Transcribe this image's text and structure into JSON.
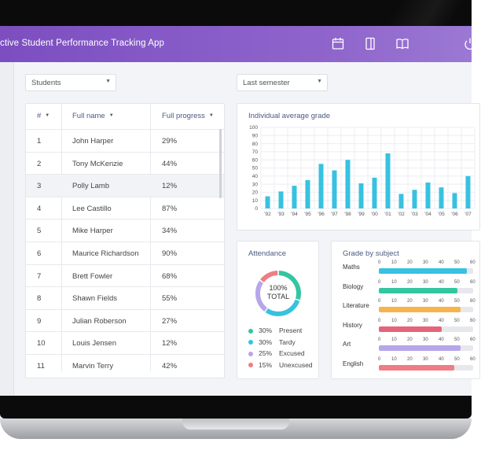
{
  "app": {
    "title": "ctive Student Performance Tracking App"
  },
  "header_icons": [
    "calendar-icon",
    "book-page-icon",
    "open-book-icon"
  ],
  "filters": {
    "students": "Students",
    "period": "Last semester"
  },
  "table": {
    "headers": {
      "num": "#",
      "name": "Full name",
      "progress": "Full progress"
    },
    "rows": [
      {
        "num": "1",
        "name": "John Harper",
        "progress": "29%"
      },
      {
        "num": "2",
        "name": "Tony McKenzie",
        "progress": "44%"
      },
      {
        "num": "3",
        "name": "Polly Lamb",
        "progress": "12%"
      },
      {
        "num": "4",
        "name": "Lee Castillo",
        "progress": "87%"
      },
      {
        "num": "5",
        "name": "Mike Harper",
        "progress": "34%"
      },
      {
        "num": "6",
        "name": "Maurice Richardson",
        "progress": "90%"
      },
      {
        "num": "7",
        "name": "Brett Fowler",
        "progress": "68%"
      },
      {
        "num": "8",
        "name": "Shawn Fields",
        "progress": "55%"
      },
      {
        "num": "9",
        "name": "Julian Roberson",
        "progress": "27%"
      },
      {
        "num": "10",
        "name": "Louis Jensen",
        "progress": "12%"
      },
      {
        "num": "11",
        "name": "Marvin Terry",
        "progress": "42%"
      }
    ],
    "selected_row": 2
  },
  "avg_grade": {
    "title": "Individual average grade",
    "y_ticks": [
      "100",
      "90",
      "80",
      "70",
      "60",
      "50",
      "40",
      "30",
      "20",
      "10",
      "0"
    ],
    "x_labels": [
      "'92",
      "'93",
      "'94",
      "'95",
      "'96",
      "'97",
      "'98",
      "'99",
      "'00",
      "'01",
      "'02",
      "'03",
      "'04",
      "'05",
      "'06",
      "'07"
    ],
    "values": [
      15,
      21,
      28,
      35,
      55,
      47,
      60,
      31,
      38,
      68,
      18,
      23,
      32,
      26,
      19,
      40
    ],
    "ylim": [
      0,
      100
    ],
    "color": "#38c1e0"
  },
  "attendance": {
    "title": "Attendance",
    "center_value": "100%",
    "center_label": "TOTAL",
    "items": [
      {
        "pct": "30%",
        "label": "Present",
        "value": 30,
        "color": "#33c6a0"
      },
      {
        "pct": "30%",
        "label": "Tardy",
        "value": 30,
        "color": "#38c1e0"
      },
      {
        "pct": "25%",
        "label": "Excused",
        "value": 25,
        "color": "#b7a6ea"
      },
      {
        "pct": "15%",
        "label": "Unexcused",
        "value": 15,
        "color": "#ef7d84"
      }
    ]
  },
  "grade_by_subject": {
    "title": "Grade by subject",
    "axis": [
      "0",
      "10",
      "20",
      "30",
      "40",
      "50",
      "60"
    ],
    "subjects": [
      {
        "name": "Maths",
        "value": 56,
        "color": "#38c1e0"
      },
      {
        "name": "Biology",
        "value": 50,
        "color": "#33c6a0"
      },
      {
        "name": "Literature",
        "value": 52,
        "color": "#f5b54c"
      },
      {
        "name": "History",
        "value": 40,
        "color": "#e5647a"
      },
      {
        "name": "Art",
        "value": 52,
        "color": "#b7a6ea"
      },
      {
        "name": "English",
        "value": 48,
        "color": "#ef7d84"
      }
    ]
  }
}
